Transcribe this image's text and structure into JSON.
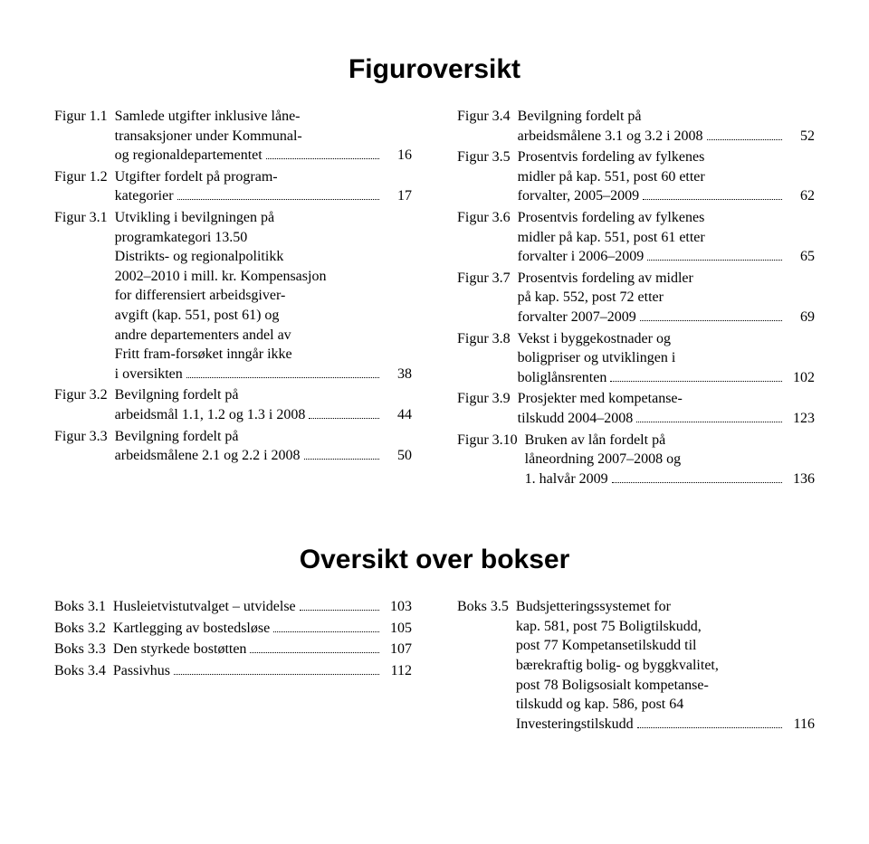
{
  "figur_section": {
    "title": "Figuroversikt",
    "left": [
      {
        "label": "Figur 1.1",
        "pre": "Samlede utgifter inklusive låne-\ntransaksjoner under Kommunal-",
        "last": "og regionaldepartementet",
        "page": "16"
      },
      {
        "label": "Figur 1.2",
        "pre": "Utgifter fordelt på program-",
        "last": "kategorier",
        "page": "17"
      },
      {
        "label": "Figur 3.1",
        "pre": "Utvikling i bevilgningen på\nprogramkategori 13.50\nDistrikts- og regionalpolitikk\n2002–2010 i mill. kr. Kompensasjon\nfor differensiert arbeidsgiver-\navgift (kap. 551, post 61) og\nandre departementers andel av\nFritt fram-forsøket inngår ikke",
        "last": "i oversikten",
        "page": "38"
      },
      {
        "label": "Figur 3.2",
        "pre": "Bevilgning fordelt på",
        "last": "arbeidsmål 1.1, 1.2 og 1.3 i 2008",
        "page": "44"
      },
      {
        "label": "Figur 3.3",
        "pre": "Bevilgning fordelt på",
        "last": "arbeidsmålene 2.1 og 2.2 i 2008",
        "page": "50"
      }
    ],
    "right": [
      {
        "label": "Figur 3.4",
        "pre": "Bevilgning fordelt på",
        "last": "arbeidsmålene 3.1 og 3.2 i 2008",
        "page": "52"
      },
      {
        "label": "Figur 3.5",
        "pre": "Prosentvis fordeling av fylkenes\nmidler på kap. 551, post 60 etter",
        "last": "forvalter, 2005–2009",
        "page": "62"
      },
      {
        "label": "Figur 3.6",
        "pre": "Prosentvis fordeling av fylkenes\nmidler på kap. 551, post 61 etter",
        "last": "forvalter i 2006–2009",
        "page": "65"
      },
      {
        "label": "Figur 3.7",
        "pre": "Prosentvis fordeling av midler\npå kap. 552, post 72 etter",
        "last": "forvalter 2007–2009",
        "page": "69"
      },
      {
        "label": "Figur 3.8",
        "pre": "Vekst i byggekostnader og\nboligpriser og utviklingen i",
        "last": "boliglånsrenten",
        "page": "102"
      },
      {
        "label": "Figur 3.9",
        "pre": "Prosjekter med kompetanse-",
        "last": "tilskudd 2004–2008",
        "page": "123"
      },
      {
        "label": "Figur 3.10",
        "pre": "Bruken av lån fordelt på\nlåneordning 2007–2008 og",
        "last": "1. halvår 2009",
        "page": "136"
      }
    ]
  },
  "boks_section": {
    "title": "Oversikt over bokser",
    "left": [
      {
        "label": "Boks 3.1",
        "pre": "",
        "last": "Husleietvistutvalget – utvidelse",
        "page": "103"
      },
      {
        "label": "Boks 3.2",
        "pre": "",
        "last": "Kartlegging av bostedsløse",
        "page": "105"
      },
      {
        "label": "Boks 3.3",
        "pre": "",
        "last": "Den styrkede bostøtten",
        "page": "107"
      },
      {
        "label": "Boks 3.4",
        "pre": "",
        "last": "Passivhus",
        "page": "112"
      }
    ],
    "right": [
      {
        "label": "Boks 3.5",
        "pre": "Budsjetteringssystemet for\nkap. 581, post 75 Boligtilskudd,\npost 77 Kompetansetilskudd til\nbærekraftig bolig- og byggkvalitet,\npost 78 Boligsosialt kompetanse-\ntilskudd og kap. 586, post 64",
        "last": "Investeringstilskudd",
        "page": "116"
      }
    ]
  }
}
